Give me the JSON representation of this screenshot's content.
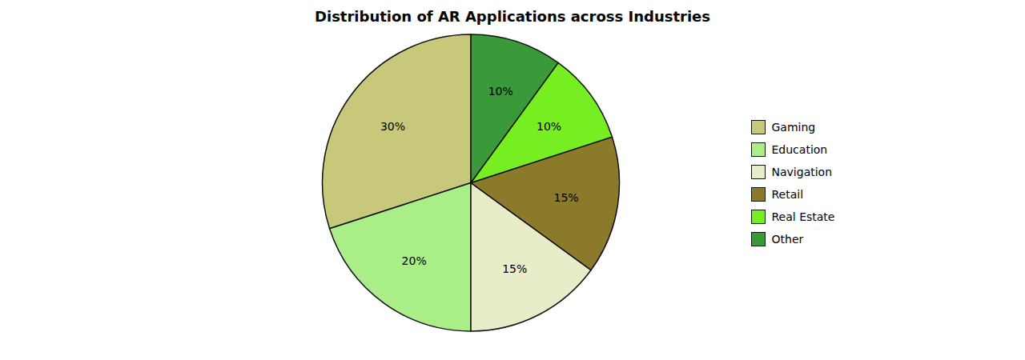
{
  "chart_data": {
    "type": "pie",
    "title": "Distribution of AR Applications across Industries",
    "categories": [
      "Gaming",
      "Education",
      "Navigation",
      "Retail",
      "Real Estate",
      "Other"
    ],
    "values": [
      30,
      20,
      15,
      15,
      10,
      10
    ],
    "value_labels": [
      "30%",
      "20%",
      "15%",
      "15%",
      "10%",
      "10%"
    ],
    "colors": [
      "#c8c87a",
      "#aaee88",
      "#e8ecc8",
      "#8b7a2a",
      "#77ee22",
      "#3a9a3a"
    ],
    "data_labels": true,
    "legend": "right"
  }
}
